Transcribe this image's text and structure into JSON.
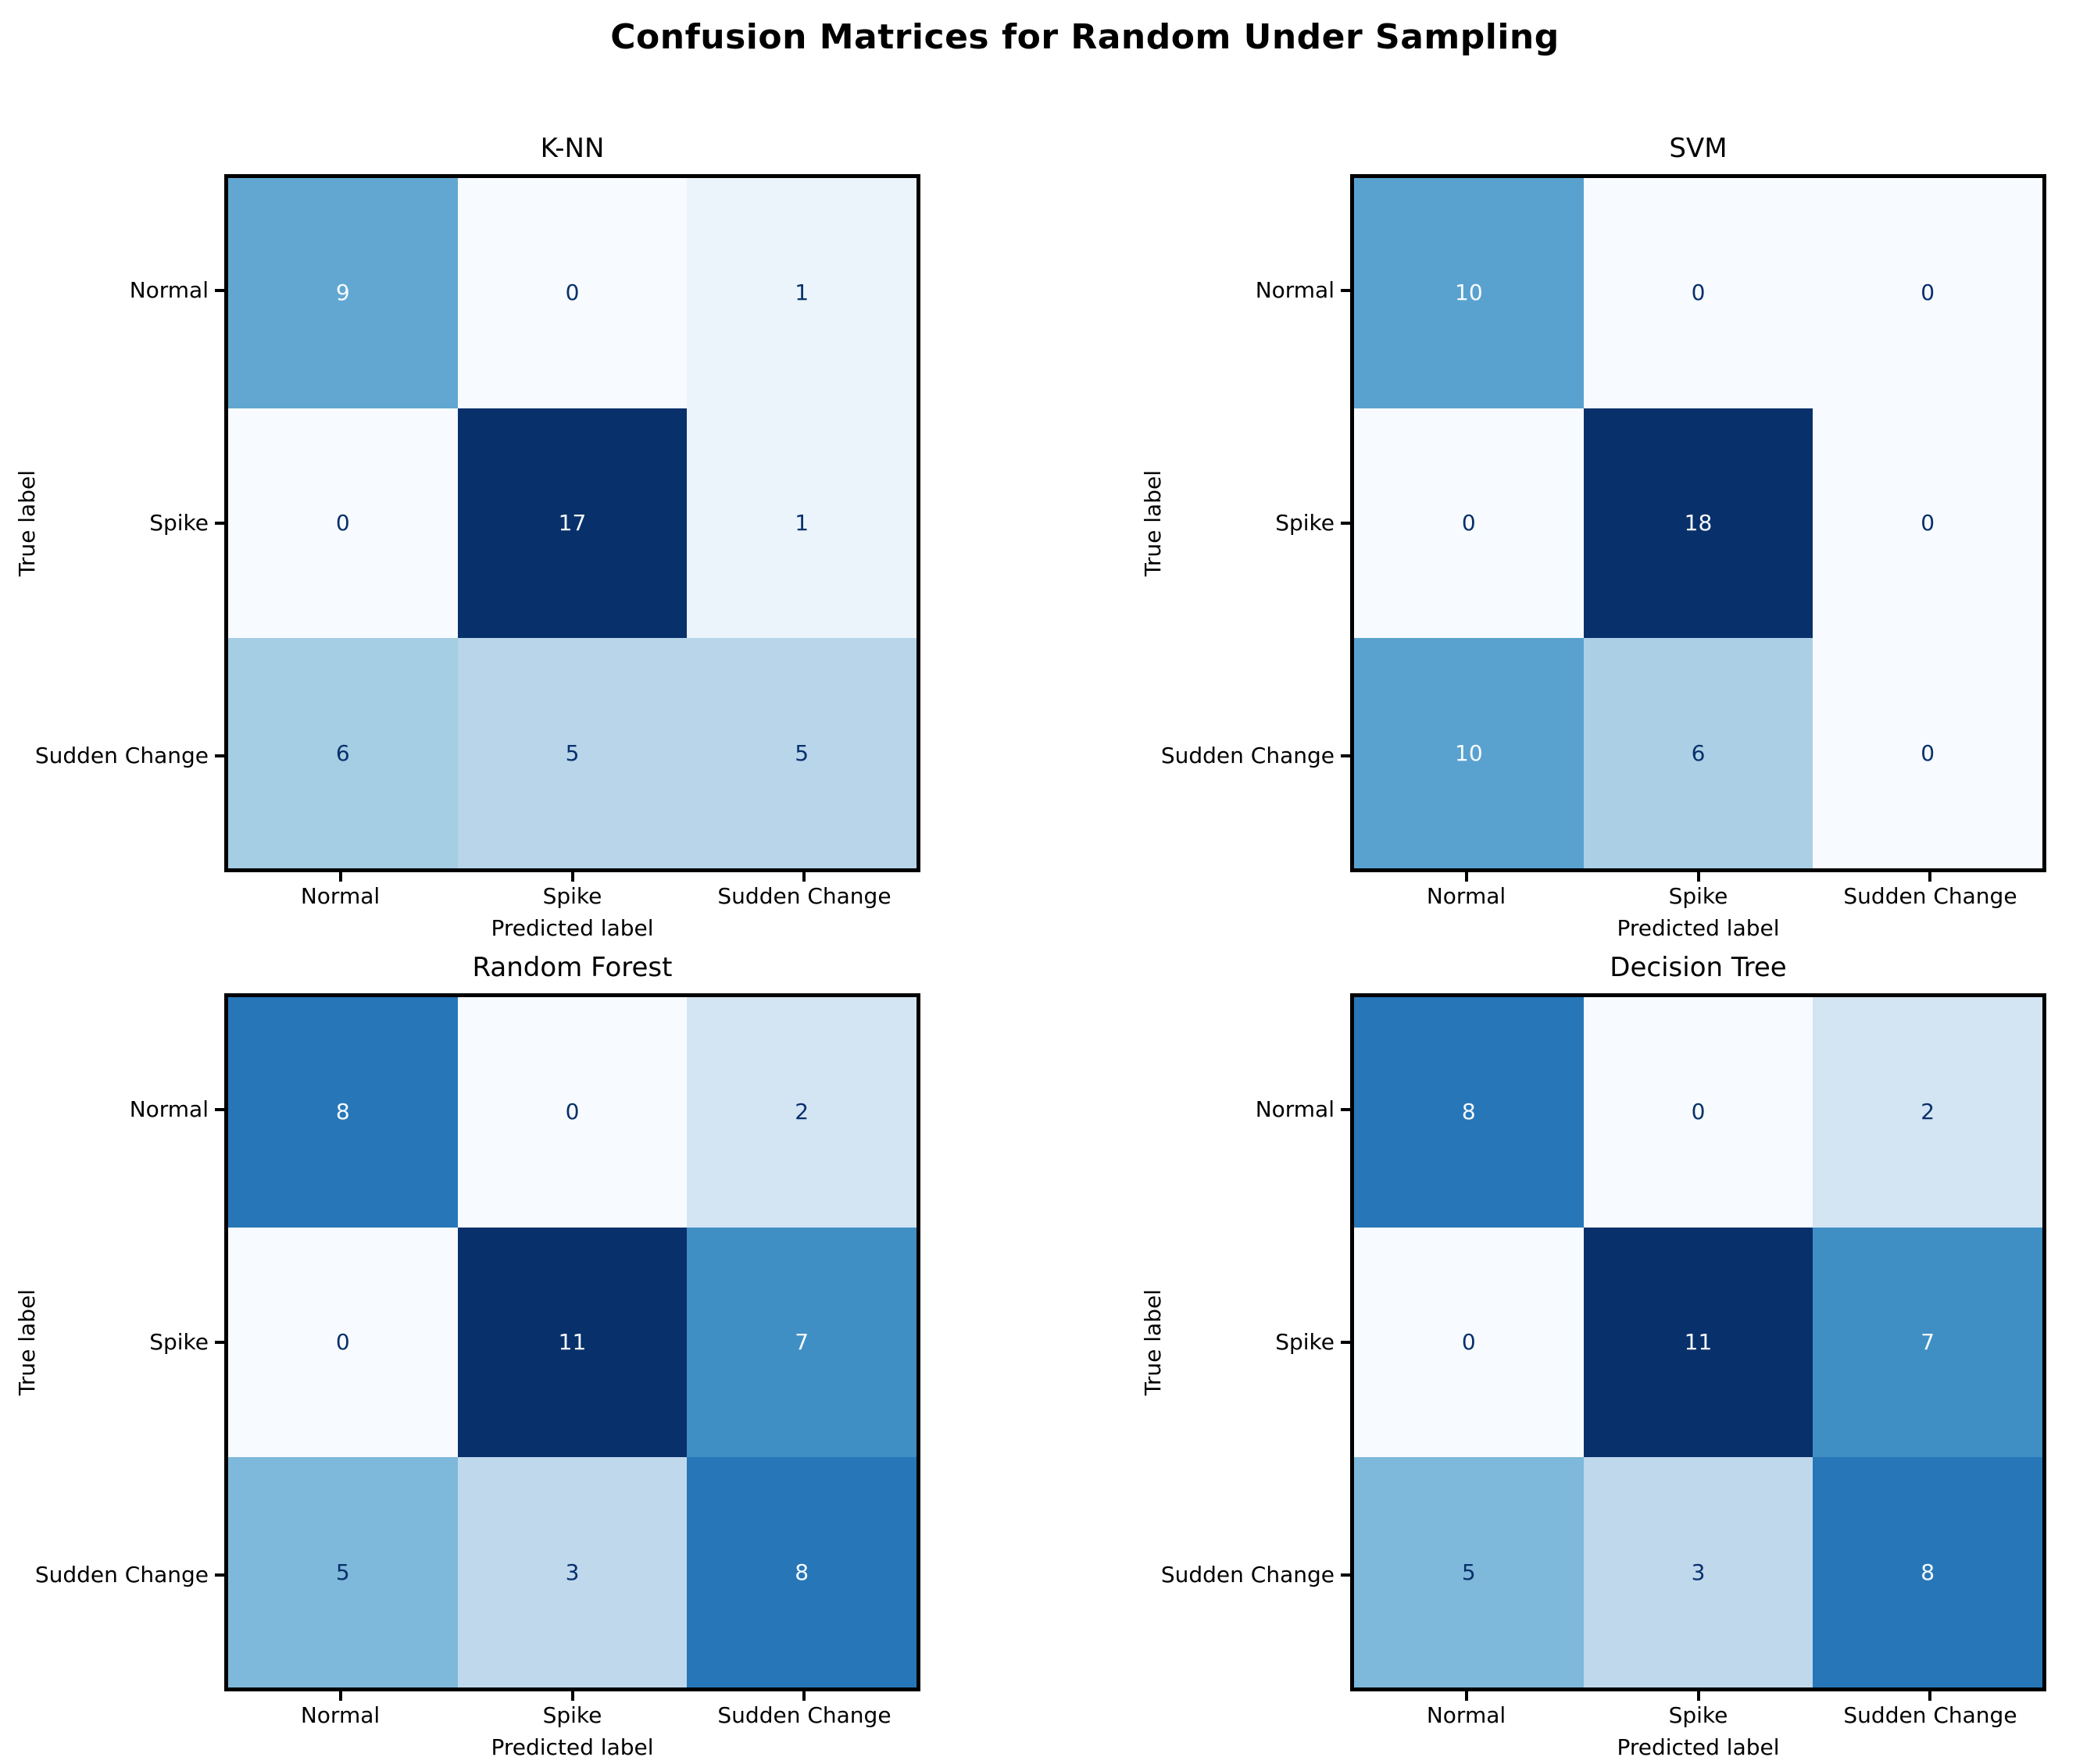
{
  "figure": {
    "title": "Confusion Matrices for Random Under Sampling",
    "background_color": "#ffffff",
    "spine_color": "#000000",
    "colormap": "Blues",
    "colormap_min_color": "#f7fbff",
    "colormap_max_color": "#08306b",
    "cell_text_dark": "#08306b",
    "cell_text_light": "#f7fbff",
    "layout": "2x2 grid of confusion matrix heatmaps"
  },
  "chart_data": [
    {
      "type": "heatmap",
      "title": "K-NN",
      "xlabel": "Predicted label",
      "ylabel": "True label",
      "x_tick_labels": [
        "Normal",
        "Spike",
        "Sudden Change"
      ],
      "y_tick_labels": [
        "Normal",
        "Spike",
        "Sudden Change"
      ],
      "values": [
        [
          9,
          0,
          1
        ],
        [
          0,
          17,
          1
        ],
        [
          6,
          5,
          5
        ]
      ],
      "value_range": [
        0,
        17
      ],
      "cell_colors": [
        [
          "#61a7d2",
          "#f7fbff",
          "#ebf3fb"
        ],
        [
          "#f7fbff",
          "#08306b",
          "#ebf3fb"
        ],
        [
          "#a5cde3",
          "#b8d5ea",
          "#b8d5ea"
        ]
      ],
      "cell_text_colors": [
        [
          "#f7fbff",
          "#08306b",
          "#08306b"
        ],
        [
          "#08306b",
          "#f7fbff",
          "#08306b"
        ],
        [
          "#08306b",
          "#08306b",
          "#08306b"
        ]
      ]
    },
    {
      "type": "heatmap",
      "title": "SVM",
      "xlabel": "Predicted label",
      "ylabel": "True label",
      "x_tick_labels": [
        "Normal",
        "Spike",
        "Sudden Change"
      ],
      "y_tick_labels": [
        "Normal",
        "Spike",
        "Sudden Change"
      ],
      "values": [
        [
          10,
          0,
          0
        ],
        [
          0,
          18,
          0
        ],
        [
          10,
          6,
          0
        ]
      ],
      "value_range": [
        0,
        18
      ],
      "cell_colors": [
        [
          "#59a2cf",
          "#f7fbff",
          "#f7fbff"
        ],
        [
          "#f7fbff",
          "#08306b",
          "#f7fbff"
        ],
        [
          "#59a2cf",
          "#abd0e6",
          "#f7fbff"
        ]
      ],
      "cell_text_colors": [
        [
          "#f7fbff",
          "#08306b",
          "#08306b"
        ],
        [
          "#08306b",
          "#f7fbff",
          "#08306b"
        ],
        [
          "#f7fbff",
          "#08306b",
          "#08306b"
        ]
      ]
    },
    {
      "type": "heatmap",
      "title": "Random Forest",
      "xlabel": "Predicted label",
      "ylabel": "True label",
      "x_tick_labels": [
        "Normal",
        "Spike",
        "Sudden Change"
      ],
      "y_tick_labels": [
        "Normal",
        "Spike",
        "Sudden Change"
      ],
      "values": [
        [
          8,
          0,
          2
        ],
        [
          0,
          11,
          7
        ],
        [
          5,
          3,
          8
        ]
      ],
      "value_range": [
        0,
        11
      ],
      "cell_colors": [
        [
          "#2777b8",
          "#f7fbff",
          "#d3e4f3"
        ],
        [
          "#f7fbff",
          "#08306b",
          "#3f8fc4"
        ],
        [
          "#7eb8da",
          "#bfd8ec",
          "#2777b8"
        ]
      ],
      "cell_text_colors": [
        [
          "#f7fbff",
          "#08306b",
          "#08306b"
        ],
        [
          "#08306b",
          "#f7fbff",
          "#f7fbff"
        ],
        [
          "#08306b",
          "#08306b",
          "#f7fbff"
        ]
      ]
    },
    {
      "type": "heatmap",
      "title": "Decision Tree",
      "xlabel": "Predicted label",
      "ylabel": "True label",
      "x_tick_labels": [
        "Normal",
        "Spike",
        "Sudden Change"
      ],
      "y_tick_labels": [
        "Normal",
        "Spike",
        "Sudden Change"
      ],
      "values": [
        [
          8,
          0,
          2
        ],
        [
          0,
          11,
          7
        ],
        [
          5,
          3,
          8
        ]
      ],
      "value_range": [
        0,
        11
      ],
      "cell_colors": [
        [
          "#2777b8",
          "#f7fbff",
          "#d3e4f3"
        ],
        [
          "#f7fbff",
          "#08306b",
          "#3f8fc4"
        ],
        [
          "#7eb8da",
          "#bfd8ec",
          "#2777b8"
        ]
      ],
      "cell_text_colors": [
        [
          "#f7fbff",
          "#08306b",
          "#08306b"
        ],
        [
          "#08306b",
          "#f7fbff",
          "#f7fbff"
        ],
        [
          "#08306b",
          "#08306b",
          "#f7fbff"
        ]
      ]
    }
  ]
}
